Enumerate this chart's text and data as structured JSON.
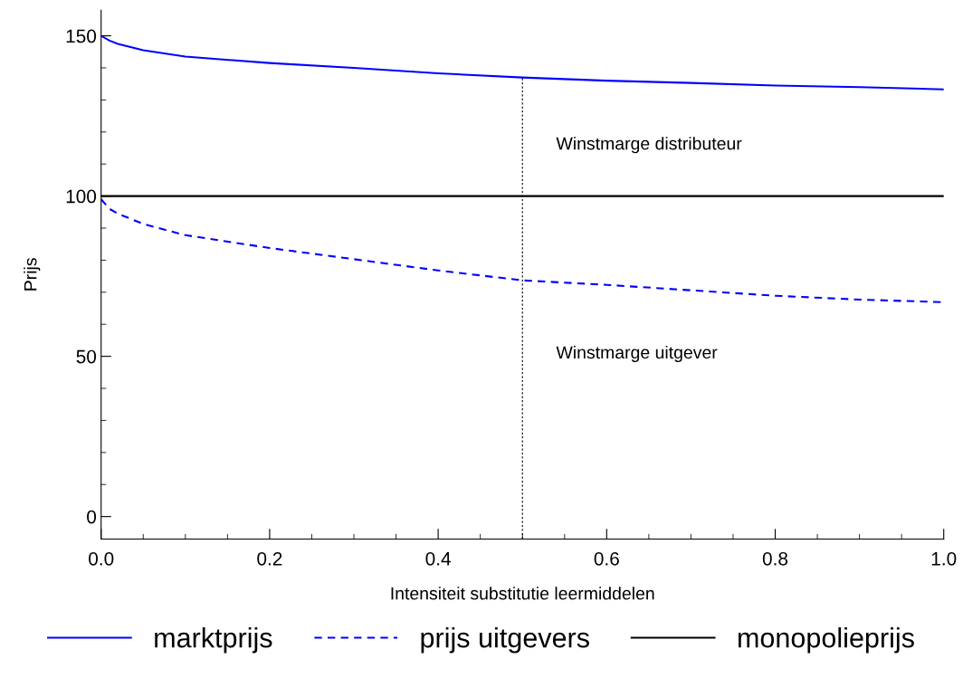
{
  "chart_data": {
    "type": "line",
    "xlabel": "Intensiteit substitutie leermiddelen",
    "ylabel": "Prijs",
    "xlim": [
      0,
      1
    ],
    "ylim": [
      -7,
      158
    ],
    "xticks": [
      {
        "value": 0,
        "label": "0.0"
      },
      0.2,
      0.4,
      0.6,
      0.8,
      {
        "value": 1,
        "label": "1.0"
      }
    ],
    "yticks": [
      0,
      50,
      100,
      150
    ],
    "series": [
      {
        "name": "marktprijs",
        "color": "#0000ff",
        "line_style": "solid",
        "x": [
          0,
          0.01,
          0.02,
          0.05,
          0.1,
          0.2,
          0.3,
          0.4,
          0.5,
          0.6,
          0.7,
          0.8,
          0.9,
          1.0
        ],
        "values": [
          150,
          148.5,
          147.5,
          145.5,
          143.5,
          141.5,
          140,
          138.3,
          137,
          136,
          135.3,
          134.5,
          134,
          133.3
        ]
      },
      {
        "name": "prijs uitgevers",
        "color": "#0000ff",
        "line_style": "dashed",
        "x": [
          0,
          0.01,
          0.02,
          0.05,
          0.1,
          0.2,
          0.3,
          0.4,
          0.5,
          0.6,
          0.7,
          0.8,
          0.9,
          1.0
        ],
        "values": [
          99,
          96,
          94.5,
          91.3,
          87.8,
          83.8,
          80.3,
          76.8,
          73.7,
          72.3,
          70.6,
          68.9,
          67.7,
          66.9
        ]
      },
      {
        "name": "monopolieprijs",
        "color": "#000000",
        "line_style": "solid",
        "x": [
          0,
          1
        ],
        "values": [
          100,
          100
        ]
      }
    ],
    "ref_lines": [
      {
        "axis": "x",
        "value": 0.5,
        "color": "#000000",
        "line_style": "dotted"
      }
    ],
    "annotations": [
      "Winstmarge distributeur",
      "Winstmarge uitgever"
    ],
    "grid": false,
    "legend": "bottom",
    "marker": "none"
  }
}
